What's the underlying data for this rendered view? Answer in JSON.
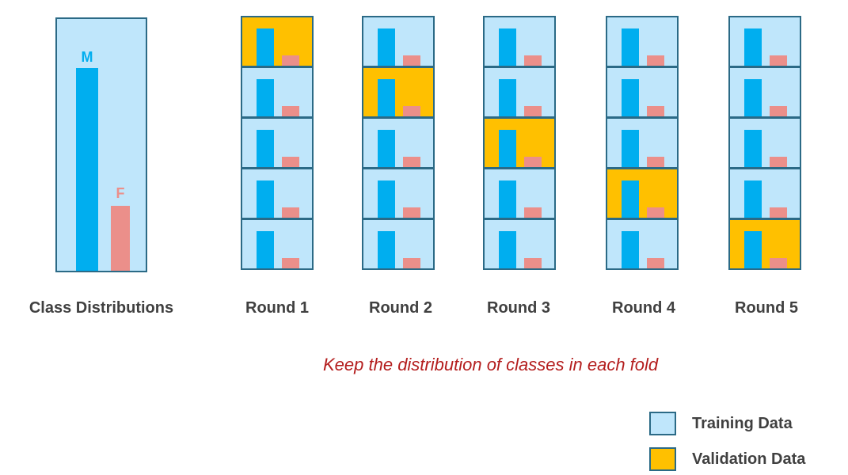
{
  "class_distribution": {
    "caption": "Class Distributions",
    "bars": [
      {
        "label": "M",
        "color": "#00aeef",
        "relative_height": 1.0
      },
      {
        "label": "F",
        "color": "#eb8f8a",
        "relative_height": 0.32
      }
    ]
  },
  "rounds": [
    {
      "label": "Round 1",
      "validation_fold": 1
    },
    {
      "label": "Round 2",
      "validation_fold": 2
    },
    {
      "label": "Round 3",
      "validation_fold": 3
    },
    {
      "label": "Round 4",
      "validation_fold": 4
    },
    {
      "label": "Round 5",
      "validation_fold": 5
    }
  ],
  "folds_per_round": 5,
  "note": "Keep the distribution of classes in each fold",
  "legend": {
    "training": {
      "label": "Training Data",
      "color": "#bfe6fb"
    },
    "validation": {
      "label": "Validation Data",
      "color": "#ffc000"
    }
  }
}
